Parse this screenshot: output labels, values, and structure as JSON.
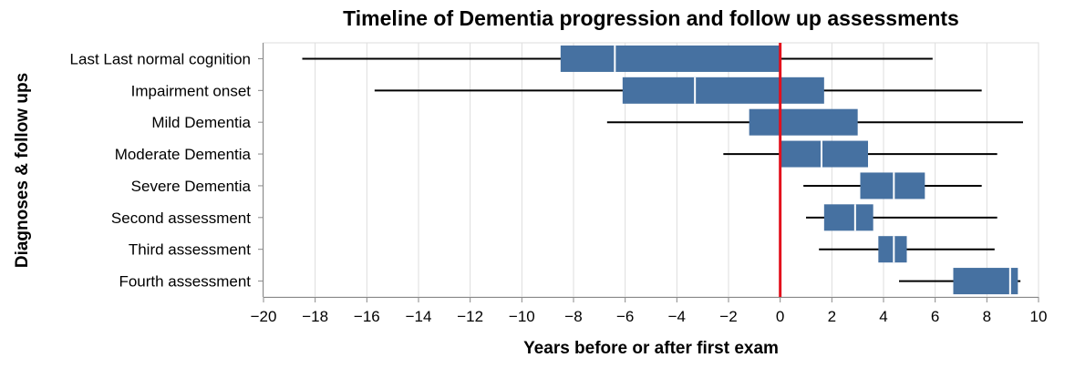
{
  "chart_data": {
    "type": "boxplot",
    "title": "Timeline of Dementia progression and follow up assessments",
    "xlabel": "Years before or after first exam",
    "ylabel": "Diagnoses & follow ups",
    "xlim": [
      -20,
      10
    ],
    "xticks": [
      -20,
      -18,
      -16,
      -14,
      -12,
      -10,
      -8,
      -6,
      -4,
      -2,
      0,
      2,
      4,
      6,
      8,
      10
    ],
    "xtick_labels": [
      "−20",
      "−18",
      "−16",
      "−14",
      "−12",
      "−10",
      "−8",
      "−6",
      "−4",
      "−2",
      "0",
      "2",
      "4",
      "6",
      "8",
      "10"
    ],
    "grid": true,
    "reference_line": {
      "x": 0,
      "color": "#e3101c"
    },
    "box_color": "#4671a1",
    "categories": [
      "Last Last normal cognition",
      "Impairment onset",
      "Mild Dementia",
      "Moderate Dementia",
      "Severe Dementia",
      "Second assessment",
      "Third assessment",
      "Fourth assessment"
    ],
    "boxes": [
      {
        "min": -18.5,
        "q1": -8.5,
        "median": -6.4,
        "q3": 0,
        "max": 5.9
      },
      {
        "min": -15.7,
        "q1": -6.1,
        "median": -3.3,
        "q3": 1.7,
        "max": 7.8
      },
      {
        "min": -6.7,
        "q1": -1.2,
        "median": 0.0,
        "q3": 3.0,
        "max": 9.4
      },
      {
        "min": -2.2,
        "q1": 0.0,
        "median": 1.6,
        "q3": 3.4,
        "max": 8.4
      },
      {
        "min": 0.9,
        "q1": 3.1,
        "median": 4.4,
        "q3": 5.6,
        "max": 7.8
      },
      {
        "min": 1.0,
        "q1": 1.7,
        "median": 2.9,
        "q3": 3.6,
        "max": 8.4
      },
      {
        "min": 1.5,
        "q1": 3.8,
        "median": 4.4,
        "q3": 4.9,
        "max": 8.3
      },
      {
        "min": 4.6,
        "q1": 6.7,
        "median": 8.9,
        "q3": 9.2,
        "max": 9.3
      }
    ]
  }
}
